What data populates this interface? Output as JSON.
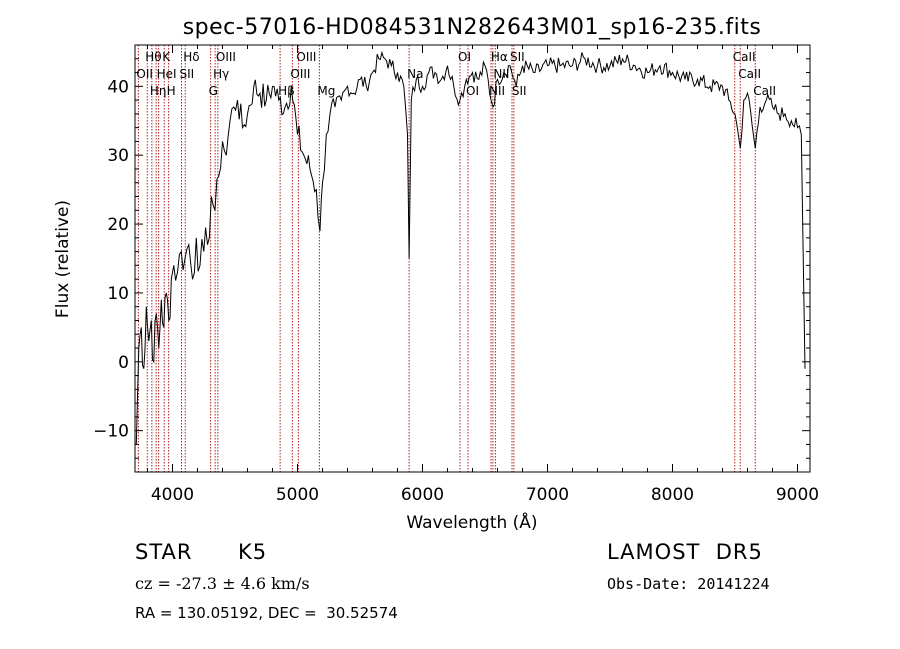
{
  "chart_data": {
    "type": "line",
    "title": "spec-57016-HD084531N282643M01_sp16-235.fits",
    "xlabel": "Wavelength (Å)",
    "ylabel": "Flux (relative)",
    "xlim": [
      3700,
      9100
    ],
    "ylim": [
      -16,
      46
    ],
    "xticks": [
      4000,
      5000,
      6000,
      7000,
      8000,
      9000
    ],
    "yticks": [
      -10,
      0,
      10,
      20,
      30,
      40
    ],
    "grid": false,
    "line_color": "#000000",
    "marker_color": "#b22222",
    "series": [
      {
        "x": [
          3710,
          3730,
          3750,
          3770,
          3790,
          3810,
          3830,
          3850,
          3870,
          3890,
          3910,
          3930,
          3950,
          3970,
          3990,
          4010,
          4040,
          4070,
          4100,
          4130,
          4160,
          4190,
          4220,
          4250,
          4280,
          4310,
          4340,
          4370,
          4400,
          4430,
          4460,
          4490,
          4520,
          4560,
          4600,
          4650,
          4700,
          4750,
          4800,
          4850,
          4900,
          4950,
          5000,
          5050,
          5100,
          5150,
          5180,
          5200,
          5230,
          5260,
          5300,
          5350,
          5400,
          5450,
          5500,
          5550,
          5600,
          5650,
          5700,
          5750,
          5800,
          5850,
          5880,
          5893,
          5910,
          5950,
          6000,
          6050,
          6100,
          6150,
          6200,
          6250,
          6300,
          6350,
          6400,
          6450,
          6500,
          6563,
          6600,
          6650,
          6700,
          6750,
          6800,
          6900,
          7000,
          7100,
          7200,
          7300,
          7400,
          7500,
          7600,
          7700,
          7800,
          7900,
          8000,
          8100,
          8200,
          8300,
          8400,
          8450,
          8500,
          8542,
          8570,
          8600,
          8662,
          8700,
          8750,
          8800,
          8850,
          8900,
          8950,
          9000,
          9030,
          9060
        ],
        "y": [
          -12,
          2,
          5,
          -1,
          8,
          3,
          6,
          0,
          7,
          2,
          9,
          5,
          10,
          6,
          12,
          14,
          13,
          16,
          15,
          17,
          12,
          18,
          14,
          16,
          17,
          24,
          22,
          27,
          32,
          30,
          35,
          37,
          38,
          34,
          36,
          40,
          39,
          38,
          40,
          38,
          37,
          40,
          33,
          30,
          28,
          25,
          19,
          26,
          33,
          36,
          37,
          38,
          40,
          39,
          41,
          40,
          42,
          44,
          44,
          43,
          42,
          40,
          33,
          15,
          38,
          41,
          40,
          42,
          42,
          41,
          43,
          40,
          38,
          41,
          42,
          41,
          43,
          37,
          41,
          42,
          43,
          40,
          43,
          42,
          43,
          43,
          43,
          44,
          43,
          43,
          44,
          43,
          42,
          43,
          42,
          41,
          41,
          40,
          40,
          38,
          36,
          31,
          38,
          39,
          31,
          37,
          38,
          37,
          36,
          36,
          35,
          34,
          33,
          -1
        ]
      }
    ],
    "lines": [
      {
        "x": 3727,
        "label": "OII",
        "row": 1
      },
      {
        "x": 3798,
        "label": "Hθ",
        "row": 0
      },
      {
        "x": 3835,
        "label": "Hη",
        "row": 2
      },
      {
        "x": 3869,
        "label": "",
        "row": 0
      },
      {
        "x": 3889,
        "label": "HeI",
        "row": 1
      },
      {
        "x": 3934,
        "label": "K",
        "row": 0
      },
      {
        "x": 3969,
        "label": "H",
        "row": 2
      },
      {
        "x": 4072,
        "label": "SII",
        "row": 1
      },
      {
        "x": 4102,
        "label": "Hδ",
        "row": 0
      },
      {
        "x": 4305,
        "label": "G",
        "row": 2
      },
      {
        "x": 4341,
        "label": "Hγ",
        "row": 1
      },
      {
        "x": 4363,
        "label": "OIII",
        "row": 0
      },
      {
        "x": 4861,
        "label": "Hβ",
        "row": 2
      },
      {
        "x": 4959,
        "label": "OIII",
        "row": 1
      },
      {
        "x": 5007,
        "label": "OIII",
        "row": 0
      },
      {
        "x": 5175,
        "label": "Mg",
        "row": 2
      },
      {
        "x": 5893,
        "label": "Na",
        "row": 1
      },
      {
        "x": 6300,
        "label": "OI",
        "row": 0
      },
      {
        "x": 6364,
        "label": "OI",
        "row": 2
      },
      {
        "x": 6548,
        "label": "NII",
        "row": 2
      },
      {
        "x": 6563,
        "label": "Hα",
        "row": 0
      },
      {
        "x": 6583,
        "label": "NII",
        "row": 1
      },
      {
        "x": 6716,
        "label": "SII",
        "row": 0
      },
      {
        "x": 6731,
        "label": "SII",
        "row": 2
      },
      {
        "x": 8498,
        "label": "CaII",
        "row": 0
      },
      {
        "x": 8542,
        "label": "CaII",
        "row": 1
      },
      {
        "x": 8662,
        "label": "CaII",
        "row": 2
      }
    ]
  },
  "info": {
    "object_class": "STAR",
    "subclass": "K5",
    "survey": "LAMOST  DR5",
    "cz": "cz = -27.3 ± 4.6 km/s",
    "obs_date": "Obs-Date: 20141224",
    "coords": "RA = 130.05192, DEC =  30.52574"
  }
}
